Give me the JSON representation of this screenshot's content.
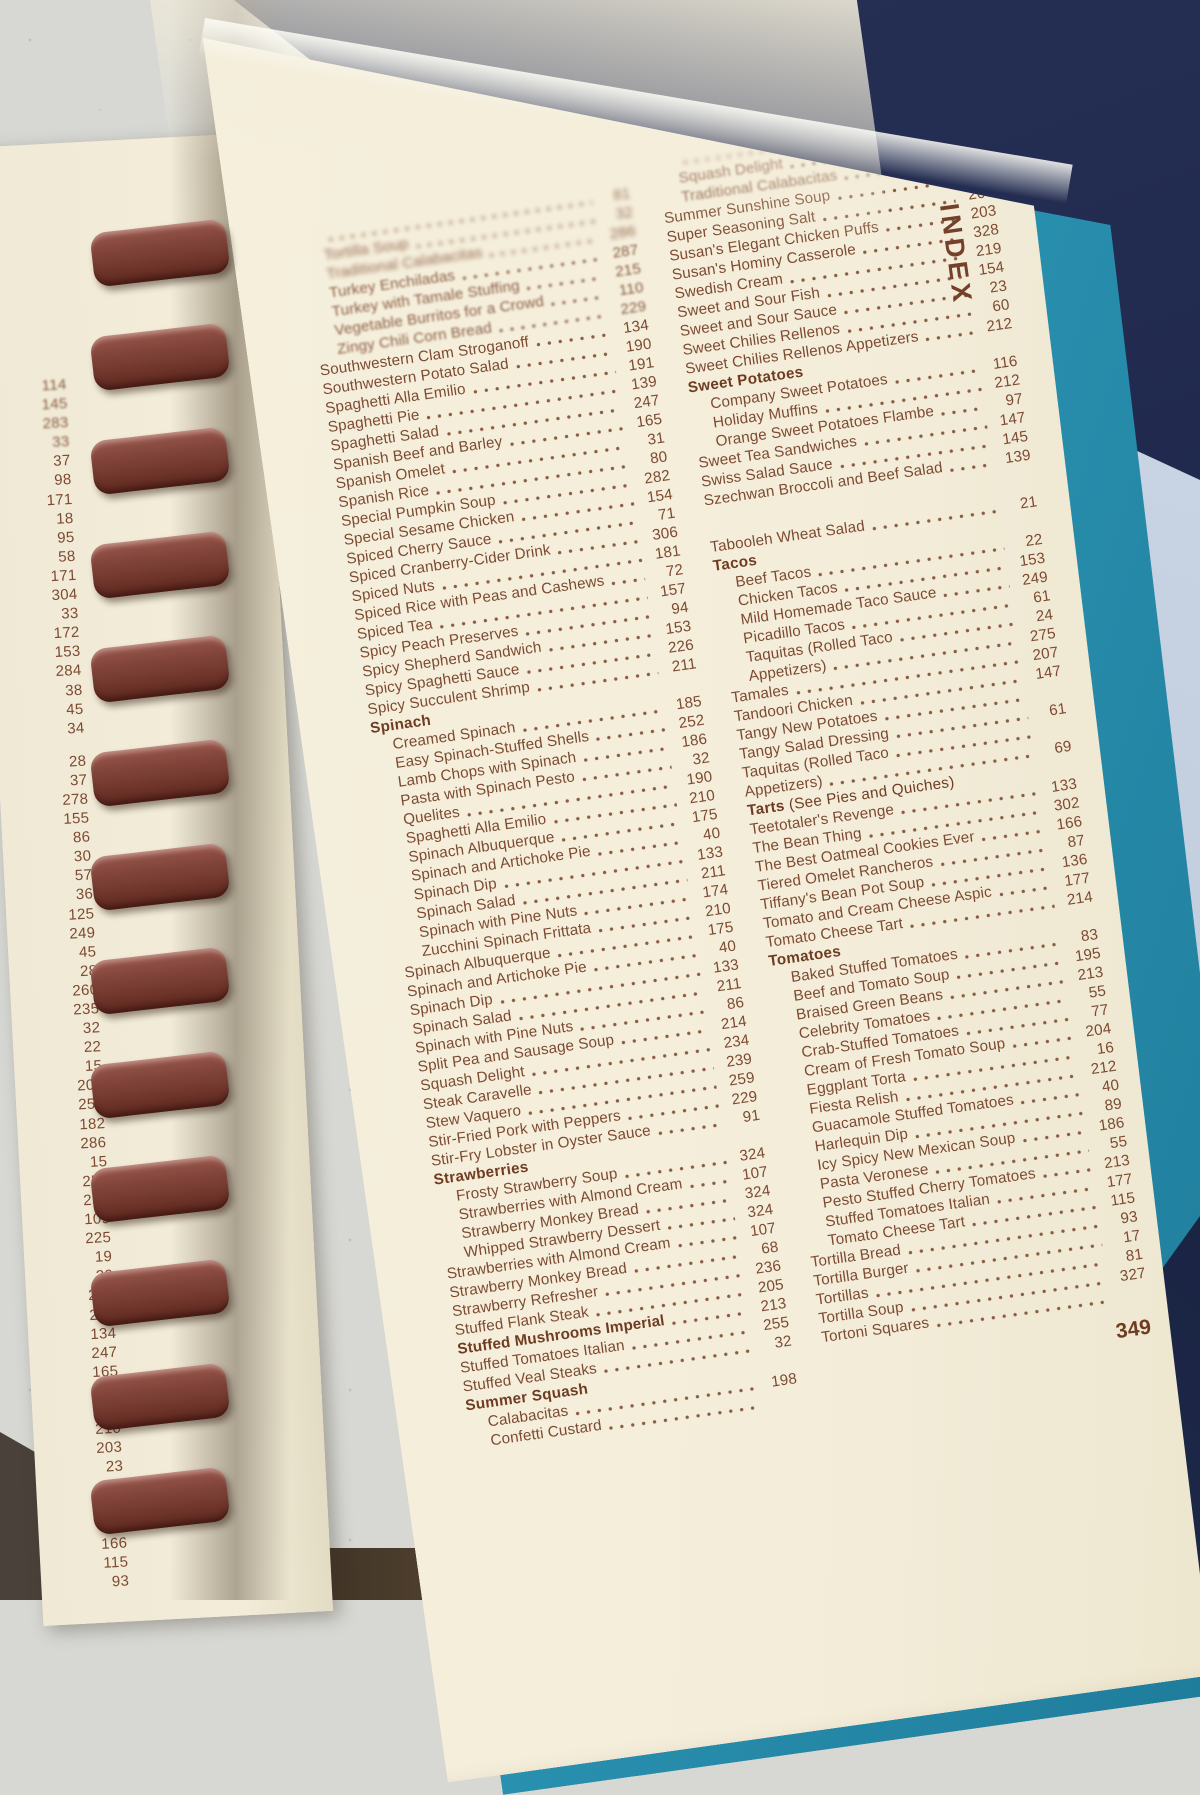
{
  "scene": {
    "index_label": "INDEX",
    "page_number": "349",
    "colors": {
      "page_cream": "#f3edda",
      "text_brown": "#7d4a31",
      "header_brown": "#6f3c22",
      "spiral_maroon": "#7c4036",
      "cover_teal": "#2b93b2",
      "background_navy": "#1f284c",
      "table_gray": "#d7d8d4",
      "wall_bluegray": "#c3cfdf"
    }
  },
  "left_page_edge_numbers": [
    "114",
    "145",
    "283",
    "33",
    "37",
    "98",
    "171",
    "18",
    "95",
    "58",
    "171",
    "304",
    "33",
    "172",
    "153",
    "284",
    "38",
    "45",
    "34",
    "GAP",
    "28",
    "37",
    "278",
    "155",
    "86",
    "30",
    "57",
    "36",
    "125",
    "249",
    "45",
    "28",
    "260",
    "235",
    "32",
    "22",
    "15",
    "209",
    "250",
    "182",
    "286",
    "15",
    "250",
    "237",
    "109",
    "225",
    "19",
    "20",
    "246",
    "229",
    "134",
    "247",
    "165",
    "31",
    "94",
    "210",
    "203",
    "23",
    "60",
    "24",
    "61",
    "166",
    "115",
    "93"
  ],
  "index": {
    "left_column": [
      {
        "t": "",
        "p": "81",
        "i": 1
      },
      {
        "t": "Tortilla Soup",
        "p": "32",
        "i": 1
      },
      {
        "t": "Traditional Calabacitas",
        "p": "286",
        "i": 1
      },
      {
        "t": "Turkey Enchiladas",
        "p": "287",
        "i": 1
      },
      {
        "t": "Turkey with Tamale Stuffing",
        "p": "215",
        "i": 1
      },
      {
        "t": "Vegetable Burritos for a Crowd",
        "p": "110",
        "i": 1
      },
      {
        "t": "Zingy Chili Corn Bread",
        "p": "229",
        "i": 1
      },
      {
        "t": "Southwestern Clam Stroganoff",
        "p": "134"
      },
      {
        "t": "Southwestern Potato Salad",
        "p": "190"
      },
      {
        "t": "Spaghetti Alla Emilio",
        "p": "191"
      },
      {
        "t": "Spaghetti Pie",
        "p": "139"
      },
      {
        "t": "Spaghetti Salad",
        "p": "247"
      },
      {
        "t": "Spanish Beef and Barley",
        "p": "165"
      },
      {
        "t": "Spanish Omelet",
        "p": "31"
      },
      {
        "t": "Spanish Rice",
        "p": "80"
      },
      {
        "t": "Special Pumpkin Soup",
        "p": "282"
      },
      {
        "t": "Special Sesame Chicken",
        "p": "154"
      },
      {
        "t": "Spiced Cherry Sauce",
        "p": "71"
      },
      {
        "t": "Spiced Cranberry-Cider Drink",
        "p": "306"
      },
      {
        "t": "Spiced Nuts",
        "p": "181"
      },
      {
        "t": "Spiced Rice with Peas and Cashews",
        "p": "72"
      },
      {
        "t": "Spiced Tea",
        "p": "157"
      },
      {
        "t": "Spicy Peach Preserves",
        "p": "94"
      },
      {
        "t": "Spicy Shepherd Sandwich",
        "p": "153"
      },
      {
        "t": "Spicy Spaghetti Sauce",
        "p": "226"
      },
      {
        "t": "Spicy Succulent Shrimp",
        "p": "211"
      },
      {
        "t": "Spinach",
        "hdr": true
      },
      {
        "t": "Creamed Spinach",
        "p": "185",
        "i": 1
      },
      {
        "t": "Easy Spinach-Stuffed Shells",
        "p": "252",
        "i": 1
      },
      {
        "t": "Lamb Chops with Spinach",
        "p": "186",
        "i": 1
      },
      {
        "t": "Pasta with Spinach Pesto",
        "p": "32",
        "i": 1
      },
      {
        "t": "Quelites",
        "p": "190",
        "i": 1
      },
      {
        "t": "Spaghetti Alla Emilio",
        "p": "210",
        "i": 1
      },
      {
        "t": "Spinach Albuquerque",
        "p": "175",
        "i": 1
      },
      {
        "t": "Spinach and Artichoke Pie",
        "p": "40",
        "i": 1
      },
      {
        "t": "Spinach Dip",
        "p": "133",
        "i": 1
      },
      {
        "t": "Spinach Salad",
        "p": "211",
        "i": 1
      },
      {
        "t": "Spinach with Pine Nuts",
        "p": "174",
        "i": 1
      },
      {
        "t": "Zucchini Spinach Frittata",
        "p": "210",
        "i": 1
      },
      {
        "t": "Spinach Albuquerque",
        "p": "175"
      },
      {
        "t": "Spinach and Artichoke Pie",
        "p": "40"
      },
      {
        "t": "Spinach Dip",
        "p": "133"
      },
      {
        "t": "Spinach Salad",
        "p": "211"
      },
      {
        "t": "Spinach with Pine Nuts",
        "p": "86"
      },
      {
        "t": "Split Pea and Sausage Soup",
        "p": "214"
      },
      {
        "t": "Squash Delight",
        "p": "234"
      },
      {
        "t": "Steak Caravelle",
        "p": "239"
      },
      {
        "t": "Stew Vaquero",
        "p": "259"
      },
      {
        "t": "Stir-Fried Pork with Peppers",
        "p": "229"
      },
      {
        "t": "Stir-Fry Lobster in Oyster Sauce",
        "p": "91"
      },
      {
        "t": "Strawberries",
        "hdr": true
      },
      {
        "t": "Frosty Strawberry Soup",
        "p": "324",
        "i": 1
      },
      {
        "t": "Strawberries with Almond Cream",
        "p": "107",
        "i": 1
      },
      {
        "t": "Strawberry Monkey Bread",
        "p": "324",
        "i": 1
      },
      {
        "t": "Whipped Strawberry Dessert",
        "p": "324",
        "i": 1
      },
      {
        "t": "Strawberries with Almond Cream",
        "p": "107"
      },
      {
        "t": "Strawberry Monkey Bread",
        "p": "68"
      },
      {
        "t": "Strawberry Refresher",
        "p": "236"
      },
      {
        "t": "Stuffed Flank Steak",
        "p": "205"
      },
      {
        "t": "Stuffed Mushrooms Imperial",
        "p": "213",
        "bold": true
      },
      {
        "t": "Stuffed Tomatoes Italian",
        "p": "255"
      },
      {
        "t": "Stuffed Veal Steaks",
        "p": "32"
      },
      {
        "t": "Summer Squash",
        "hdr": true
      },
      {
        "t": "Calabacitas",
        "p": "198",
        "i": 1
      },
      {
        "t": "Confetti Custard",
        "p": "",
        "i": 1
      }
    ],
    "right_column": [
      {
        "t": "",
        "p": "214",
        "i": 1
      },
      {
        "t": "Squash Delight",
        "p": "32",
        "i": 1
      },
      {
        "t": "Traditional Calabacitas",
        "p": "90",
        "i": 1
      },
      {
        "t": "Summer Sunshine Soup",
        "p": "155"
      },
      {
        "t": "Super Seasoning Salt",
        "p": "266"
      },
      {
        "t": "Susan's Elegant Chicken Puffs",
        "p": "203"
      },
      {
        "t": "Susan's Hominy Casserole",
        "p": "328"
      },
      {
        "t": "Swedish Cream",
        "p": "219"
      },
      {
        "t": "Sweet and Sour Fish",
        "p": "154"
      },
      {
        "t": "Sweet and Sour Sauce",
        "p": "23"
      },
      {
        "t": "Sweet Chilies Rellenos",
        "p": "60"
      },
      {
        "t": "Sweet Chilies Rellenos Appetizers",
        "p": "212"
      },
      {
        "t": "Sweet Potatoes",
        "hdr": true
      },
      {
        "t": "Company Sweet Potatoes",
        "p": "116",
        "i": 1
      },
      {
        "t": "Holiday Muffins",
        "p": "212",
        "i": 1
      },
      {
        "t": "Orange Sweet Potatoes Flambe",
        "p": "97",
        "i": 1
      },
      {
        "t": "Sweet Tea Sandwiches",
        "p": "147"
      },
      {
        "t": "Swiss Salad Sauce",
        "p": "145"
      },
      {
        "t": "Szechwan Broccoli and Beef Salad",
        "p": "139"
      },
      {
        "gap": 28
      },
      {
        "t": "Tabooleh Wheat Salad",
        "p": "21"
      },
      {
        "t": "Tacos",
        "hdr": true
      },
      {
        "t": "Beef Tacos",
        "p": "22",
        "i": 1
      },
      {
        "t": "Chicken Tacos",
        "p": "153",
        "i": 1
      },
      {
        "t": "Mild Homemade Taco Sauce",
        "p": "249",
        "i": 1
      },
      {
        "t": "Picadillo Tacos",
        "p": "61",
        "i": 1
      },
      {
        "t": "Taquitas (Rolled Taco",
        "p": "24",
        "i": 1
      },
      {
        "t": "Appetizers)",
        "p": "275",
        "i": 1
      },
      {
        "t": "Tamales",
        "p": "207"
      },
      {
        "t": "Tandoori Chicken",
        "p": "147"
      },
      {
        "t": "Tangy New Potatoes",
        "p": ""
      },
      {
        "t": "Tangy Salad Dressing",
        "p": "61"
      },
      {
        "t": "Taquitas (Rolled Taco",
        "p": ""
      },
      {
        "t": "Appetizers)",
        "p": "69"
      },
      {
        "t": "Tarts",
        "sfx": " (See Pies and Quiches)",
        "hdr": true
      },
      {
        "t": "Teetotaler's Revenge",
        "p": "133"
      },
      {
        "t": "The Bean Thing",
        "p": "302"
      },
      {
        "t": "The Best Oatmeal Cookies Ever",
        "p": "166"
      },
      {
        "t": "Tiered Omelet Rancheros",
        "p": "87"
      },
      {
        "t": "Tiffany's Bean Pot Soup",
        "p": "136"
      },
      {
        "t": "Tomato and Cream Cheese Aspic",
        "p": "177"
      },
      {
        "t": "Tomato Cheese Tart",
        "p": "214"
      },
      {
        "t": "Tomatoes",
        "hdr": true
      },
      {
        "t": "Baked Stuffed Tomatoes",
        "p": "83",
        "i": 1
      },
      {
        "t": "Beef and Tomato Soup",
        "p": "195",
        "i": 1
      },
      {
        "t": "Braised Green Beans",
        "p": "213",
        "i": 1
      },
      {
        "t": "Celebrity Tomatoes",
        "p": "55",
        "i": 1
      },
      {
        "t": "Crab-Stuffed Tomatoes",
        "p": "77",
        "i": 1
      },
      {
        "t": "Cream of Fresh Tomato Soup",
        "p": "204",
        "i": 1
      },
      {
        "t": "Eggplant Torta",
        "p": "16",
        "i": 1
      },
      {
        "t": "Fiesta Relish",
        "p": "212",
        "i": 1
      },
      {
        "t": "Guacamole Stuffed Tomatoes",
        "p": "40",
        "i": 1
      },
      {
        "t": "Harlequin Dip",
        "p": "89",
        "i": 1
      },
      {
        "t": "Icy Spicy New Mexican Soup",
        "p": "186",
        "i": 1
      },
      {
        "t": "Pasta Veronese",
        "p": "55",
        "i": 1
      },
      {
        "t": "Pesto Stuffed Cherry Tomatoes",
        "p": "213",
        "i": 1
      },
      {
        "t": "Stuffed Tomatoes Italian",
        "p": "177",
        "i": 1
      },
      {
        "t": "Tomato Cheese Tart",
        "p": "115",
        "i": 1
      },
      {
        "t": "Tortilla Bread",
        "p": "93"
      },
      {
        "t": "Tortilla Burger",
        "p": "17"
      },
      {
        "t": "Tortillas",
        "p": "81"
      },
      {
        "t": "Tortilla Soup",
        "p": "327"
      },
      {
        "t": "Tortoni Squares",
        "p": ""
      }
    ]
  }
}
